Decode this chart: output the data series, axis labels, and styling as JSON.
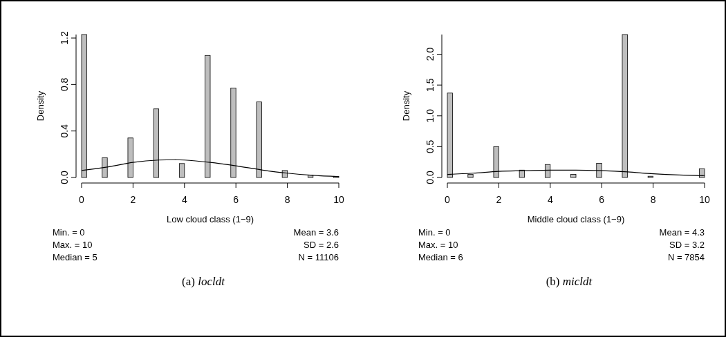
{
  "chart_data": [
    {
      "type": "histogram",
      "title": "(a) locldt",
      "xlabel": "Low cloud class (1−9)",
      "ylabel": "Density",
      "bins": [
        0,
        0.2,
        0.4,
        0.6,
        0.8,
        1,
        1.2,
        1.4,
        1.6,
        1.8,
        2,
        2.2,
        2.4,
        2.6,
        2.8,
        3,
        3.2,
        3.4,
        3.6,
        3.8,
        4,
        4.2,
        4.4,
        4.6,
        4.8,
        5,
        5.2,
        5.4,
        5.6,
        5.8,
        6,
        6.2,
        6.4,
        6.6,
        6.8,
        7,
        7.2,
        7.4,
        7.6,
        7.8,
        8,
        8.2,
        8.4,
        8.6,
        8.8,
        9,
        9.2,
        9.4,
        9.6,
        9.8,
        10
      ],
      "values": [
        1.23,
        0,
        0,
        0,
        0.17,
        0,
        0,
        0,
        0,
        0.34,
        0,
        0,
        0,
        0,
        0.59,
        0,
        0,
        0,
        0,
        0.12,
        0,
        0,
        0,
        0,
        1.05,
        0,
        0,
        0,
        0,
        0.77,
        0,
        0,
        0,
        0,
        0.65,
        0,
        0,
        0,
        0,
        0.06,
        0,
        0,
        0,
        0,
        0.02,
        0,
        0,
        0,
        0,
        0.01
      ],
      "color": "#bebebe",
      "series": [
        {
          "type": "line",
          "color": "#000000",
          "x": [
            0,
            1,
            2,
            3,
            3.6,
            4,
            5,
            6,
            7,
            8,
            9,
            10
          ],
          "values": [
            0.06,
            0.09,
            0.13,
            0.15,
            0.153,
            0.15,
            0.13,
            0.1,
            0.065,
            0.037,
            0.018,
            0.007
          ]
        }
      ],
      "xlim": [
        0,
        10
      ],
      "xticks": [
        0,
        2,
        4,
        6,
        8,
        10
      ],
      "ylim": [
        0,
        1.23
      ],
      "yticks": [
        {
          "value": 0,
          "label": "0.0"
        },
        {
          "value": 0.4,
          "label": "0.4"
        },
        {
          "value": 0.8,
          "label": "0.8"
        },
        {
          "value": 1.2,
          "label": "1.2"
        }
      ],
      "annotations": [
        "Min. = 0",
        "Mean = 3.6",
        "Max. = 10",
        "SD = 2.6",
        "Median = 5",
        "N = 11106"
      ],
      "grid": false
    },
    {
      "type": "histogram",
      "title": "(b) micldt",
      "xlabel": "Middle cloud class (1−9)",
      "ylabel": "Density",
      "bins": [
        0,
        0.2,
        0.4,
        0.6,
        0.8,
        1,
        1.2,
        1.4,
        1.6,
        1.8,
        2,
        2.2,
        2.4,
        2.6,
        2.8,
        3,
        3.2,
        3.4,
        3.6,
        3.8,
        4,
        4.2,
        4.4,
        4.6,
        4.8,
        5,
        5.2,
        5.4,
        5.6,
        5.8,
        6,
        6.2,
        6.4,
        6.6,
        6.8,
        7,
        7.2,
        7.4,
        7.6,
        7.8,
        8,
        8.2,
        8.4,
        8.6,
        8.8,
        9,
        9.2,
        9.4,
        9.6,
        9.8,
        10
      ],
      "values": [
        1.37,
        0,
        0,
        0,
        0.05,
        0,
        0,
        0,
        0,
        0.5,
        0,
        0,
        0,
        0,
        0.12,
        0,
        0,
        0,
        0,
        0.21,
        0,
        0,
        0,
        0,
        0.05,
        0,
        0,
        0,
        0,
        0.23,
        0,
        0,
        0,
        0,
        2.32,
        0,
        0,
        0,
        0,
        0.02,
        0,
        0,
        0,
        0,
        0,
        0,
        0,
        0,
        0,
        0.14
      ],
      "color": "#bebebe",
      "series": [
        {
          "type": "line",
          "color": "#000000",
          "x": [
            0,
            1,
            2,
            3,
            4,
            5,
            6,
            7,
            8,
            9,
            10
          ],
          "values": [
            0.05,
            0.07,
            0.1,
            0.11,
            0.12,
            0.12,
            0.11,
            0.09,
            0.06,
            0.04,
            0.03
          ]
        }
      ],
      "xlim": [
        0,
        10
      ],
      "xticks": [
        0,
        2,
        4,
        6,
        8,
        10
      ],
      "ylim": [
        0,
        2.32
      ],
      "yticks": [
        {
          "value": 0,
          "label": "0.0"
        },
        {
          "value": 0.5,
          "label": "0.5"
        },
        {
          "value": 1,
          "label": "1.0"
        },
        {
          "value": 1.5,
          "label": "1.5"
        },
        {
          "value": 2,
          "label": "2.0"
        }
      ],
      "annotations": [
        "Min. = 0",
        "Mean = 4.3",
        "Max. = 10",
        "SD = 3.2",
        "Median = 6",
        "N = 7854"
      ],
      "grid": false
    }
  ]
}
